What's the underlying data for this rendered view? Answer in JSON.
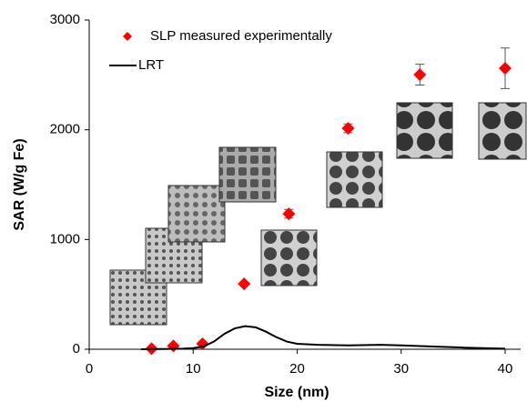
{
  "chart_data": {
    "type": "scatter",
    "x_label": "Size (nm)",
    "y_label": "SAR (W/g Fe)",
    "xlim": [
      0,
      40
    ],
    "ylim": [
      0,
      3000
    ],
    "xticks": [
      0,
      10,
      20,
      30,
      40
    ],
    "yticks": [
      0,
      1000,
      2000,
      3000
    ],
    "grid": false,
    "legend": "upper-left",
    "series": [
      {
        "name": "SLP measured experimentally",
        "mode": "markers",
        "color": "#ff0000",
        "x": [
          6,
          8.1,
          10.9,
          14.9,
          19.2,
          24.9,
          31.8,
          40
        ],
        "values": [
          5,
          30,
          50,
          596,
          1234,
          2013,
          2502,
          2560
        ],
        "errors": [
          0,
          0,
          0,
          0,
          40,
          40,
          95,
          185
        ]
      },
      {
        "name": "LRT",
        "mode": "line",
        "color": "#000000",
        "x": [
          5,
          7,
          9,
          10,
          11,
          12,
          13,
          14,
          15,
          16,
          17,
          18,
          19,
          20,
          22,
          25,
          28,
          30,
          33,
          36,
          40
        ],
        "values": [
          0,
          2,
          5,
          10,
          25,
          70,
          140,
          190,
          210,
          200,
          160,
          110,
          70,
          50,
          40,
          35,
          40,
          35,
          25,
          15,
          5
        ]
      }
    ]
  }
}
